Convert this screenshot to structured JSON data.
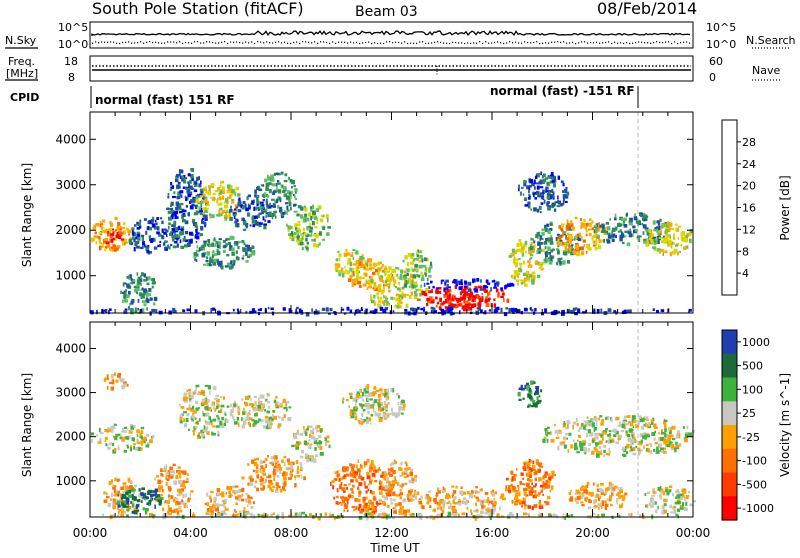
{
  "header": {
    "station": "South Pole Station (fitACF)",
    "beam": "Beam 03",
    "date": "08/Feb/2014"
  },
  "top_panel": {
    "nsky_label": "N.Sky",
    "nsearch_label": "N.Search",
    "nsky_ticks": [
      "10^5",
      "10^0"
    ],
    "nsearch_ticks": [
      "10^5",
      "10^0"
    ],
    "freq_label_1": "Freq.",
    "freq_label_2": "[MHz]",
    "freq_ticks": [
      "18",
      "8"
    ],
    "nave_label": "Nave",
    "nave_ticks": [
      "60",
      "0"
    ],
    "cpid_label": "CPID",
    "cpid_left": "normal (fast) 151 RF",
    "cpid_right": "normal (fast) -151 RF"
  },
  "colors": {
    "power": [
      "#0000ff",
      "#1f4fa0",
      "#2e8b57",
      "#5fbf5f",
      "#d8d800",
      "#ffa500",
      "#ff6000",
      "#ff0000"
    ],
    "velocity": [
      "#1f3fb0",
      "#1a6a3a",
      "#3cb43c",
      "#c8c8c0",
      "#ffa000",
      "#ff7000",
      "#ff3c00",
      "#ff0000"
    ],
    "ground_scatter": "#c0c0b8"
  },
  "chart_data": [
    {
      "type": "heatmap",
      "name": "Power",
      "ylabel": "Slant Range [km]",
      "xlabel": "Time UT",
      "x_ticks": [
        "00:00",
        "04:00",
        "08:00",
        "12:00",
        "16:00",
        "20:00",
        "00:00"
      ],
      "y_ticks": [
        "1000",
        "2000",
        "3000",
        "4000"
      ],
      "colorbar_label": "Power [dB]",
      "colorbar_ticks": [
        "4",
        "8",
        "12",
        "16",
        "20",
        "24",
        "28"
      ],
      "xlim_hours": [
        0,
        24
      ],
      "ylim_km": [
        180,
        4600
      ],
      "blobs": [
        {
          "t0": 0.0,
          "t1": 1.6,
          "r0": 1600,
          "r1": 2300,
          "level": 6
        },
        {
          "t0": 0.3,
          "t1": 1.3,
          "r0": 1750,
          "r1": 2050,
          "level": 8
        },
        {
          "t0": 1.2,
          "t1": 2.6,
          "r0": 200,
          "r1": 1100,
          "level": 3
        },
        {
          "t0": 1.5,
          "t1": 3.5,
          "r0": 1500,
          "r1": 2300,
          "level": 2
        },
        {
          "t0": 3.0,
          "t1": 4.6,
          "r0": 1600,
          "r1": 3400,
          "level": 2
        },
        {
          "t0": 4.2,
          "t1": 6.0,
          "r0": 2300,
          "r1": 3100,
          "level": 5
        },
        {
          "t0": 4.0,
          "t1": 6.5,
          "r0": 1200,
          "r1": 1900,
          "level": 3
        },
        {
          "t0": 5.5,
          "t1": 7.2,
          "r0": 2000,
          "r1": 2800,
          "level": 2
        },
        {
          "t0": 6.5,
          "t1": 8.2,
          "r0": 2300,
          "r1": 3300,
          "level": 3
        },
        {
          "t0": 7.8,
          "t1": 9.5,
          "r0": 1600,
          "r1": 2600,
          "level": 4
        },
        {
          "t0": 9.5,
          "t1": 11.0,
          "r0": 1000,
          "r1": 1600,
          "level": 5
        },
        {
          "t0": 10.2,
          "t1": 12.0,
          "r0": 700,
          "r1": 1400,
          "level": 6
        },
        {
          "t0": 11.0,
          "t1": 13.0,
          "r0": 300,
          "r1": 1200,
          "level": 5
        },
        {
          "t0": 12.3,
          "t1": 13.6,
          "r0": 600,
          "r1": 1600,
          "level": 4
        },
        {
          "t0": 13.0,
          "t1": 16.6,
          "r0": 300,
          "r1": 800,
          "level": 8
        },
        {
          "t0": 13.3,
          "t1": 16.0,
          "r0": 380,
          "r1": 620,
          "level": 8
        },
        {
          "t0": 13.2,
          "t1": 16.8,
          "r0": 700,
          "r1": 950,
          "level": 1
        },
        {
          "t0": 16.6,
          "t1": 18.0,
          "r0": 800,
          "r1": 1900,
          "level": 5
        },
        {
          "t0": 17.0,
          "t1": 19.0,
          "r0": 2400,
          "r1": 3300,
          "level": 2
        },
        {
          "t0": 17.5,
          "t1": 19.5,
          "r0": 1300,
          "r1": 2200,
          "level": 3
        },
        {
          "t0": 18.5,
          "t1": 20.5,
          "r0": 1500,
          "r1": 2300,
          "level": 6
        },
        {
          "t0": 20.0,
          "t1": 23.0,
          "r0": 1700,
          "r1": 2400,
          "level": 3
        },
        {
          "t0": 22.0,
          "t1": 24.0,
          "r0": 1500,
          "r1": 2200,
          "level": 5
        },
        {
          "t0": 0.0,
          "t1": 24.0,
          "r0": 190,
          "r1": 320,
          "level": 1
        }
      ]
    },
    {
      "type": "heatmap",
      "name": "Velocity",
      "ylabel": "Slant Range [km]",
      "xlabel": "Time UT",
      "x_ticks": [
        "00:00",
        "04:00",
        "08:00",
        "12:00",
        "16:00",
        "20:00",
        "00:00"
      ],
      "y_ticks": [
        "1000",
        "2000",
        "3000",
        "4000"
      ],
      "colorbar_label": "Velocity [m s^-1]",
      "colorbar_ticks": [
        "1000",
        "500",
        "100",
        "25",
        "-25",
        "-100",
        "-500",
        "-1000"
      ],
      "xlim_hours": [
        0,
        24
      ],
      "ylim_km": [
        180,
        4600
      ],
      "blobs": [
        {
          "t0": 0.0,
          "t1": 2.5,
          "r0": 1700,
          "r1": 2300,
          "level": 4
        },
        {
          "t0": 0.5,
          "t1": 1.5,
          "r0": 3100,
          "r1": 3500,
          "level": 5
        },
        {
          "t0": 0.5,
          "t1": 2.0,
          "r0": 300,
          "r1": 1100,
          "level": 5
        },
        {
          "t0": 1.0,
          "t1": 3.0,
          "r0": 300,
          "r1": 900,
          "level": 2
        },
        {
          "t0": 2.5,
          "t1": 4.0,
          "r0": 300,
          "r1": 1400,
          "level": 5
        },
        {
          "t0": 3.5,
          "t1": 5.5,
          "r0": 2000,
          "r1": 3200,
          "level": 4
        },
        {
          "t0": 4.5,
          "t1": 6.5,
          "r0": 200,
          "r1": 900,
          "level": 5
        },
        {
          "t0": 5.5,
          "t1": 8.0,
          "r0": 2200,
          "r1": 3000,
          "level": 4
        },
        {
          "t0": 6.0,
          "t1": 8.5,
          "r0": 800,
          "r1": 1600,
          "level": 5
        },
        {
          "t0": 8.0,
          "t1": 9.5,
          "r0": 1500,
          "r1": 2300,
          "level": 4
        },
        {
          "t0": 9.5,
          "t1": 12.0,
          "r0": 300,
          "r1": 1500,
          "level": 6
        },
        {
          "t0": 10.0,
          "t1": 12.5,
          "r0": 2300,
          "r1": 3200,
          "level": 4
        },
        {
          "t0": 11.5,
          "t1": 13.0,
          "r0": 300,
          "r1": 1500,
          "level": 5
        },
        {
          "t0": 13.0,
          "t1": 16.5,
          "r0": 250,
          "r1": 900,
          "level": 5
        },
        {
          "t0": 16.5,
          "t1": 18.5,
          "r0": 400,
          "r1": 1500,
          "level": 6
        },
        {
          "t0": 17.0,
          "t1": 18.0,
          "r0": 2700,
          "r1": 3300,
          "level": 2
        },
        {
          "t0": 18.0,
          "t1": 24.0,
          "r0": 1600,
          "r1": 2500,
          "level": 4
        },
        {
          "t0": 19.0,
          "t1": 21.5,
          "r0": 400,
          "r1": 1000,
          "level": 5
        },
        {
          "t0": 22.0,
          "t1": 24.0,
          "r0": 300,
          "r1": 900,
          "level": 4
        },
        {
          "t0": 0.0,
          "t1": 24.0,
          "r0": 190,
          "r1": 300,
          "level": 4
        }
      ]
    }
  ]
}
